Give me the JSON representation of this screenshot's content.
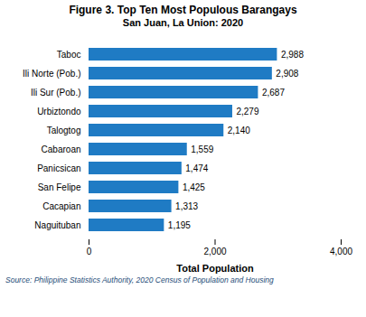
{
  "chart_data": {
    "type": "bar",
    "orientation": "horizontal",
    "title": "Figure 3. Top Ten Most Populous Barangays",
    "subtitle": "San Juan, La Union: 2020",
    "caption": "Source: Philippine Statistics Authority, 2020 Census of Population and Housing",
    "categories": [
      "Naguituban",
      "Cacapian",
      "San Felipe",
      "Panicsican",
      "Cabaroan",
      "Talogtog",
      "Urbiztondo",
      "Ili Sur (Pob.)",
      "Ili Norte (Pob.)",
      "Taboc"
    ],
    "values": [
      1195,
      1313,
      1425,
      1474,
      1559,
      2140,
      2279,
      2687,
      2908,
      2988
    ],
    "value_labels": [
      "1,195",
      "1,313",
      "1,425",
      "1,474",
      "1,559",
      "2,140",
      "2,279",
      "2,687",
      "2,908",
      "2,988"
    ],
    "data_labels": true,
    "color": "#1F7BC4",
    "xlabel": "Total Population",
    "xlim": [
      0,
      4000
    ],
    "xticks": [
      0,
      {
        "value": 2000,
        "label": "2,000"
      },
      {
        "value": 4000,
        "label": "4,000"
      }
    ],
    "grid": false
  }
}
